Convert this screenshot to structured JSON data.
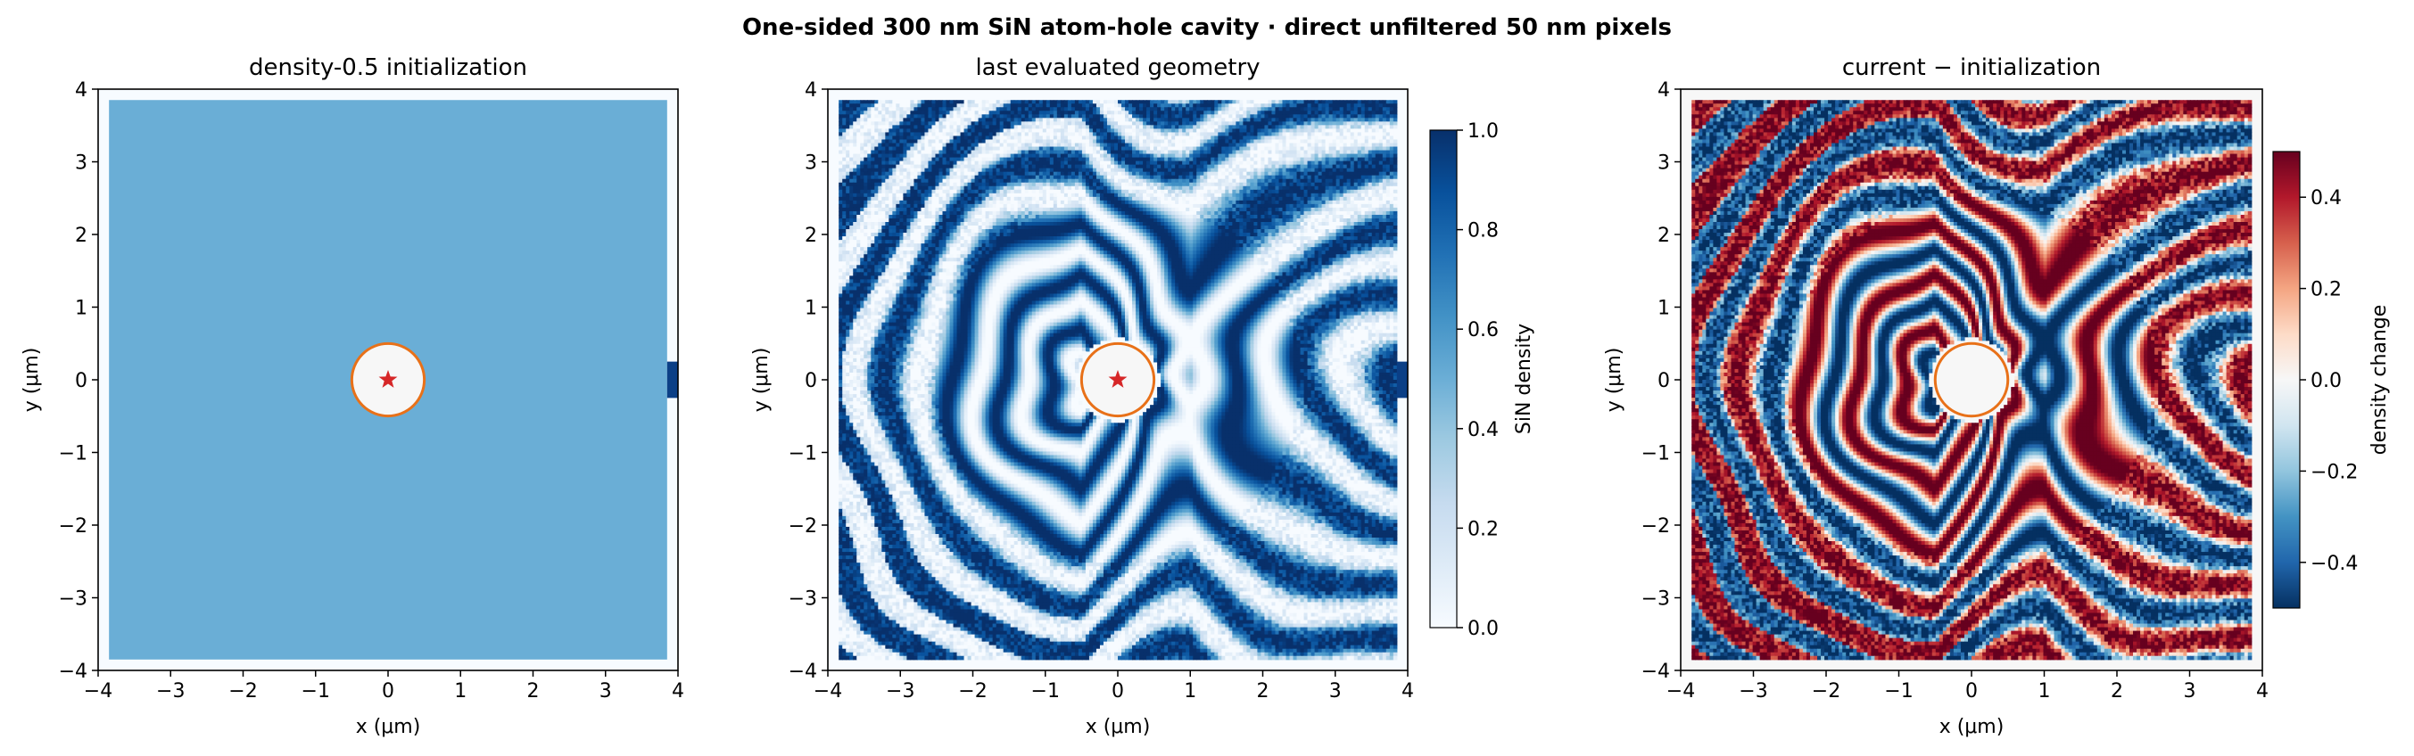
{
  "figure": {
    "suptitle": "One-sided 300 nm SiN atom-hole cavity · direct unfiltered 50 nm pixels"
  },
  "chart_data": [
    {
      "type": "heatmap",
      "title": "density-0.5 initialization",
      "xlabel": "x (μm)",
      "ylabel": "y (μm)",
      "xlim": [
        -4,
        4
      ],
      "ylim": [
        -4,
        4
      ],
      "xticks": [
        "−4",
        "−3",
        "−2",
        "−1",
        "0",
        "1",
        "2",
        "3",
        "4"
      ],
      "yticks": [
        "−4",
        "−3",
        "−2",
        "−1",
        "0",
        "1",
        "2",
        "3",
        "4"
      ],
      "design_region": [
        -3.85,
        3.85
      ],
      "fill_density": 0.5,
      "hole_radius": 0.5,
      "emitter_marker": "star",
      "waveguide_stub": {
        "x": [
          3.85,
          4.0
        ],
        "y": [
          -0.25,
          0.25
        ]
      },
      "colormap": "Blues",
      "colors": {
        "fill": "#6aaed6",
        "stub": "#0b3f86",
        "hole_outline": "#e87119",
        "star": "#d62728",
        "hole_fill": "#f7f7f7"
      }
    },
    {
      "type": "heatmap",
      "title": "last evaluated geometry",
      "xlabel": "x (μm)",
      "ylabel": "y (μm)",
      "xlim": [
        -4,
        4
      ],
      "ylim": [
        -4,
        4
      ],
      "xticks": [
        "−4",
        "−3",
        "−2",
        "−1",
        "0",
        "1",
        "2",
        "3",
        "4"
      ],
      "yticks": [
        "−4",
        "−3",
        "−2",
        "−1",
        "0",
        "1",
        "2",
        "3",
        "4"
      ],
      "pattern": "concentric density fringes around the hole, opening to the right with curved fringes converging on the waveguide",
      "hole_radius": 0.5,
      "emitter_marker": "star",
      "colormap": "Blues",
      "colorbar": {
        "label": "SiN density",
        "range": [
          0.0,
          1.0
        ],
        "ticks": [
          "0.0",
          "0.2",
          "0.4",
          "0.6",
          "0.8",
          "1.0"
        ]
      },
      "colors": {
        "stub": "#0b3f86",
        "hole_outline": "#e87119",
        "star": "#d62728",
        "hole_fill": "#f7f7f7"
      }
    },
    {
      "type": "heatmap",
      "title": "current − initialization",
      "xlabel": "x (μm)",
      "ylabel": "y (μm)",
      "xlim": [
        -4,
        4
      ],
      "ylim": [
        -4,
        4
      ],
      "xticks": [
        "−4",
        "−3",
        "−2",
        "−1",
        "0",
        "1",
        "2",
        "3",
        "4"
      ],
      "yticks": [
        "−4",
        "−3",
        "−2",
        "−1",
        "0",
        "1",
        "2",
        "3",
        "4"
      ],
      "pattern": "difference map of the optimized density minus 0.5",
      "hole_radius": 0.5,
      "colormap": "RdBu_r",
      "colorbar": {
        "label": "density change",
        "range": [
          -0.5,
          0.5
        ],
        "ticks": [
          "−0.4",
          "−0.2",
          "0.0",
          "0.2",
          "0.4"
        ]
      },
      "colors": {
        "hole_outline": "#e87119",
        "hole_fill": "#f7f7f7"
      }
    }
  ]
}
